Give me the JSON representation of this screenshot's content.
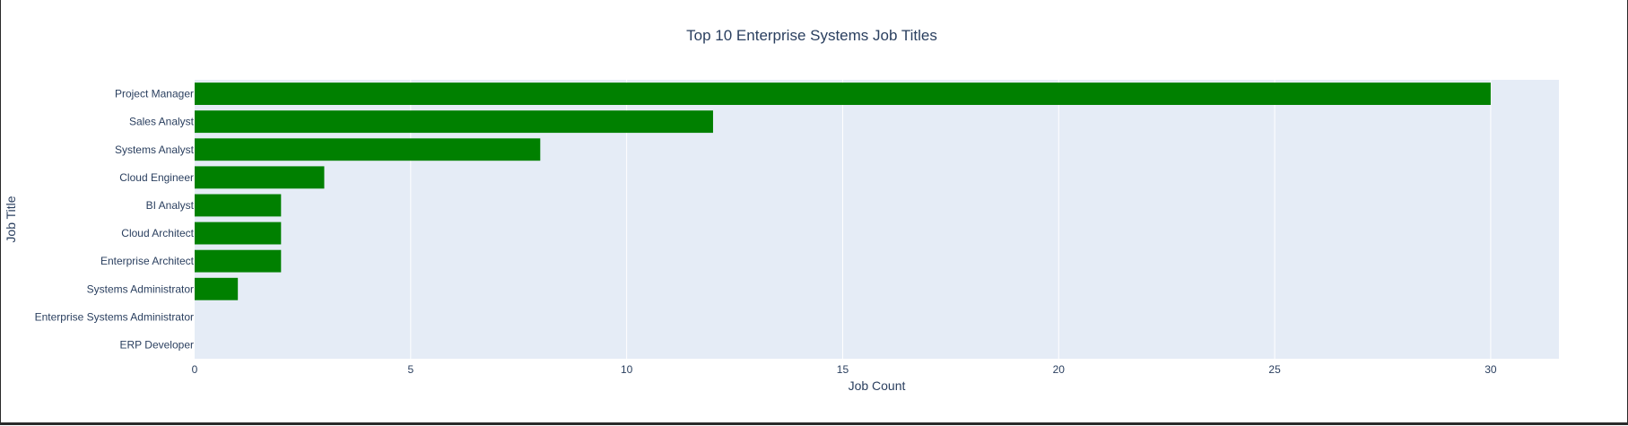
{
  "chart_data": {
    "type": "bar",
    "orientation": "horizontal",
    "title": "Top 10 Enterprise Systems Job Titles",
    "xlabel": "Job Count",
    "ylabel": "Job Title",
    "categories": [
      "Project Manager",
      "Sales Analyst",
      "Systems Analyst",
      "Cloud Engineer",
      "BI Analyst",
      "Cloud Architect",
      "Enterprise Architect",
      "Systems Administrator",
      "Enterprise Systems Administrator",
      "ERP Developer"
    ],
    "values": [
      30,
      12,
      8,
      3,
      2,
      2,
      2,
      1,
      0,
      0
    ],
    "xlim": [
      0,
      31.58
    ],
    "xticks": [
      0,
      5,
      10,
      15,
      20,
      25,
      30
    ],
    "grid": true,
    "legend": "none",
    "colors": {
      "bar": "#008000",
      "plot_bg": "#e5ecf6",
      "grid": "#ffffff",
      "text": "#2a3f5f"
    }
  }
}
